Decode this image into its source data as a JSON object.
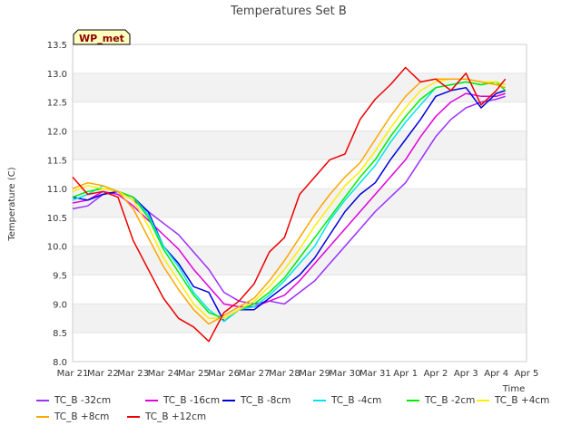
{
  "chart_data": {
    "type": "line",
    "title": "Temperatures Set B",
    "xlabel": "Time",
    "ylabel": "Temperature (C)",
    "ylim": [
      8.0,
      13.5
    ],
    "xlim": [
      0,
      15
    ],
    "x_tick_labels": [
      "Mar 21",
      "Mar 22",
      "Mar 23",
      "Mar 24",
      "Mar 25",
      "Mar 26",
      "Mar 27",
      "Mar 28",
      "Mar 29",
      "Mar 30",
      "Mar 31",
      "Apr 1",
      "Apr 2",
      "Apr 3",
      "Apr 4",
      "Apr 5"
    ],
    "y_ticks": [
      8.0,
      8.5,
      9.0,
      9.5,
      10.0,
      10.5,
      11.0,
      11.5,
      12.0,
      12.5,
      13.0,
      13.5
    ],
    "badge": "WP_met",
    "grid": "horizontal alternating bands",
    "legend_position": "bottom",
    "series": [
      {
        "name": "TC_B -32cm",
        "color": "#9b30ff",
        "x": [
          0,
          0.5,
          1,
          1.5,
          2,
          2.5,
          3,
          3.5,
          4,
          4.5,
          5,
          5.5,
          6,
          6.5,
          7,
          7.5,
          8,
          8.5,
          9,
          9.5,
          10,
          10.5,
          11,
          11.5,
          12,
          12.5,
          13,
          13.5,
          14,
          14.3
        ],
        "y": [
          10.65,
          10.7,
          10.9,
          10.95,
          10.8,
          10.6,
          10.4,
          10.2,
          9.9,
          9.6,
          9.2,
          9.05,
          9.0,
          9.05,
          9.0,
          9.2,
          9.4,
          9.7,
          10.0,
          10.3,
          10.6,
          10.85,
          11.1,
          11.5,
          11.9,
          12.2,
          12.4,
          12.5,
          12.55,
          12.6
        ]
      },
      {
        "name": "TC_B -16cm",
        "color": "#e000e0",
        "x": [
          0,
          0.5,
          1,
          1.5,
          2,
          2.5,
          3,
          3.5,
          4,
          4.5,
          5,
          5.5,
          6,
          6.5,
          7,
          7.5,
          8,
          8.5,
          9,
          9.5,
          10,
          10.5,
          11,
          11.5,
          12,
          12.5,
          13,
          13.5,
          14,
          14.3
        ],
        "y": [
          10.75,
          10.8,
          10.95,
          10.9,
          10.7,
          10.45,
          10.2,
          9.95,
          9.6,
          9.3,
          9.0,
          8.95,
          8.95,
          9.05,
          9.15,
          9.4,
          9.7,
          10.0,
          10.3,
          10.6,
          10.9,
          11.2,
          11.5,
          11.9,
          12.25,
          12.5,
          12.65,
          12.6,
          12.6,
          12.65
        ]
      },
      {
        "name": "TC_B -8cm",
        "color": "#0000dd",
        "x": [
          0,
          0.5,
          1,
          1.5,
          2,
          2.5,
          3,
          3.5,
          4,
          4.5,
          5,
          5.5,
          6,
          6.5,
          7,
          7.5,
          8,
          8.5,
          9,
          9.5,
          10,
          10.5,
          11,
          11.5,
          12,
          12.5,
          13,
          13.5,
          14,
          14.3
        ],
        "y": [
          10.85,
          10.8,
          10.9,
          10.95,
          10.85,
          10.6,
          10.0,
          9.7,
          9.3,
          9.2,
          8.7,
          8.9,
          8.9,
          9.1,
          9.3,
          9.5,
          9.8,
          10.2,
          10.6,
          10.9,
          11.1,
          11.5,
          11.85,
          12.2,
          12.6,
          12.7,
          12.75,
          12.4,
          12.65,
          12.7
        ]
      },
      {
        "name": "TC_B -4cm",
        "color": "#00e5ee",
        "x": [
          0,
          0.5,
          1,
          1.5,
          2,
          2.5,
          3,
          3.5,
          4,
          4.5,
          5,
          5.5,
          6,
          6.5,
          7,
          7.5,
          8,
          8.5,
          9,
          9.5,
          10,
          10.5,
          11,
          11.5,
          12,
          12.5,
          13,
          13.5,
          14,
          14.3
        ],
        "y": [
          10.8,
          10.9,
          11.05,
          10.95,
          10.85,
          10.55,
          10.0,
          9.65,
          9.2,
          8.9,
          8.7,
          8.9,
          8.95,
          9.15,
          9.4,
          9.7,
          10.0,
          10.45,
          10.8,
          11.1,
          11.4,
          11.8,
          12.15,
          12.45,
          12.75,
          12.8,
          12.85,
          12.8,
          12.85,
          12.8
        ]
      },
      {
        "name": "TC_B -2cm",
        "color": "#00ee00",
        "x": [
          0,
          0.5,
          1,
          1.5,
          2,
          2.5,
          3,
          3.5,
          4,
          4.5,
          5,
          5.5,
          6,
          6.5,
          7,
          7.5,
          8,
          8.5,
          9,
          9.5,
          10,
          10.5,
          11,
          11.5,
          12,
          12.5,
          13,
          13.5,
          14,
          14.3
        ],
        "y": [
          10.85,
          10.95,
          11.0,
          10.95,
          10.85,
          10.5,
          9.95,
          9.55,
          9.15,
          8.85,
          8.75,
          8.9,
          9.0,
          9.2,
          9.45,
          9.8,
          10.15,
          10.5,
          10.85,
          11.2,
          11.5,
          11.9,
          12.25,
          12.55,
          12.75,
          12.8,
          12.85,
          12.8,
          12.85,
          12.7
        ]
      },
      {
        "name": "TC_B +4cm",
        "color": "#ffee00",
        "x": [
          0,
          0.5,
          1,
          1.5,
          2,
          2.5,
          3,
          3.5,
          4,
          4.5,
          5,
          5.5,
          6,
          6.5,
          7,
          7.5,
          8,
          8.5,
          9,
          9.5,
          10,
          10.5,
          11,
          11.5,
          12,
          12.5,
          13,
          13.5,
          14,
          14.3
        ],
        "y": [
          10.95,
          11.05,
          11.0,
          10.95,
          10.8,
          10.35,
          9.8,
          9.4,
          9.0,
          8.75,
          8.75,
          8.9,
          9.05,
          9.3,
          9.6,
          9.95,
          10.35,
          10.7,
          11.05,
          11.3,
          11.65,
          12.05,
          12.4,
          12.7,
          12.85,
          12.9,
          12.9,
          12.85,
          12.85,
          12.8
        ]
      },
      {
        "name": "TC_B +8cm",
        "color": "#ffa500",
        "x": [
          0,
          0.5,
          1,
          1.5,
          2,
          2.5,
          3,
          3.5,
          4,
          4.5,
          5,
          5.5,
          6,
          6.5,
          7,
          7.5,
          8,
          8.5,
          9,
          9.5,
          10,
          10.5,
          11,
          11.5,
          12,
          12.5,
          13,
          13.5,
          14,
          14.3
        ],
        "y": [
          11.0,
          11.1,
          11.05,
          10.95,
          10.65,
          10.15,
          9.65,
          9.25,
          8.9,
          8.65,
          8.8,
          8.95,
          9.1,
          9.4,
          9.75,
          10.15,
          10.55,
          10.9,
          11.2,
          11.45,
          11.85,
          12.25,
          12.6,
          12.85,
          12.9,
          12.9,
          12.9,
          12.85,
          12.8,
          12.75
        ]
      },
      {
        "name": "TC_B +12cm",
        "color": "#ee0000",
        "x": [
          0,
          0.5,
          1,
          1.5,
          2,
          2.5,
          3,
          3.5,
          4,
          4.5,
          5,
          5.5,
          6,
          6.5,
          7,
          7.5,
          8,
          8.5,
          9,
          9.5,
          10,
          10.5,
          11,
          11.5,
          12,
          12.5,
          13,
          13.5,
          14,
          14.3
        ],
        "y": [
          11.2,
          10.9,
          10.95,
          10.85,
          10.1,
          9.6,
          9.1,
          8.75,
          8.6,
          8.35,
          8.85,
          9.05,
          9.35,
          9.9,
          10.15,
          10.9,
          11.2,
          11.5,
          11.6,
          12.2,
          12.55,
          12.8,
          13.1,
          12.85,
          12.9,
          12.7,
          13.0,
          12.45,
          12.7,
          12.9
        ]
      }
    ]
  }
}
